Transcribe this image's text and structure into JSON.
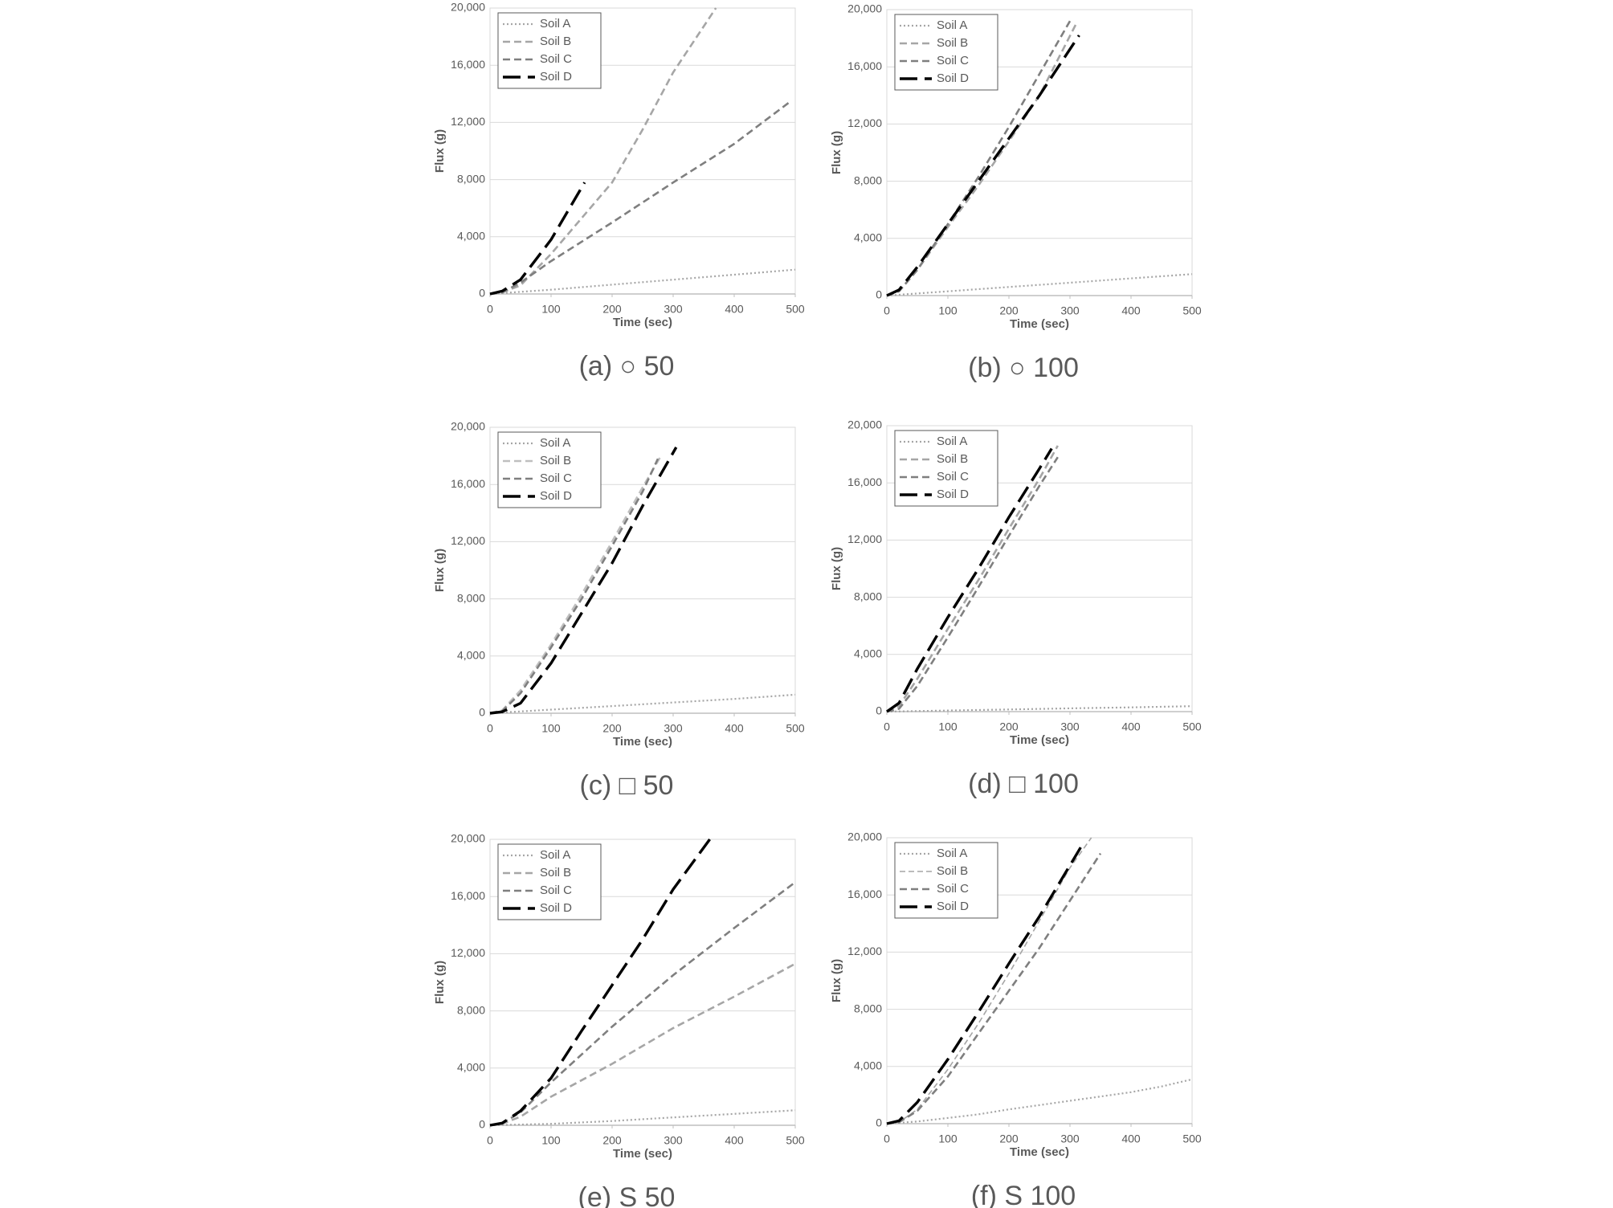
{
  "chart_data": [
    {
      "type": "line",
      "caption": "(a) ○ 50",
      "xlabel": "Time (sec)",
      "ylabel": "Flux (g)",
      "xlim": [
        0,
        500
      ],
      "ylim": [
        0,
        20000
      ],
      "xticks": [
        0,
        100,
        200,
        300,
        400,
        500
      ],
      "yticks": [
        0,
        {
          "value": 4000,
          "label": "4,000"
        },
        {
          "value": 8000,
          "label": "8,000"
        },
        {
          "value": 12000,
          "label": "12,000"
        },
        {
          "value": 16000,
          "label": "16,000"
        },
        {
          "value": 20000,
          "label": "20,000"
        }
      ],
      "grid": true,
      "legend": "upper left",
      "series": [
        {
          "name": "Soil A",
          "color": "#a6a6a6",
          "style": "dotted",
          "x": [
            0,
            100,
            200,
            300,
            400,
            500
          ],
          "values": [
            0,
            300,
            650,
            1000,
            1350,
            1700
          ]
        },
        {
          "name": "Soil B",
          "color": "#a6a6a6",
          "style": "dashed",
          "x": [
            0,
            20,
            50,
            100,
            150,
            200,
            250,
            300,
            370
          ],
          "values": [
            0,
            100,
            600,
            2800,
            5300,
            7800,
            11500,
            15500,
            20000
          ]
        },
        {
          "name": "Soil C",
          "color": "#7f7f7f",
          "style": "dashed",
          "x": [
            0,
            20,
            50,
            100,
            200,
            300,
            400,
            490
          ],
          "values": [
            0,
            100,
            800,
            2300,
            5000,
            7800,
            10500,
            13400
          ]
        },
        {
          "name": "Soil D",
          "color": "#000000",
          "style": "long-dash",
          "x": [
            0,
            20,
            50,
            100,
            155
          ],
          "values": [
            0,
            200,
            1000,
            3800,
            7800
          ]
        }
      ]
    },
    {
      "type": "line",
      "caption": "(b) ○ 100",
      "xlabel": "Time (sec)",
      "ylabel": "Flux (g)",
      "xlim": [
        0,
        500
      ],
      "ylim": [
        0,
        20000
      ],
      "xticks": [
        0,
        100,
        200,
        300,
        400,
        500
      ],
      "yticks": [
        0,
        {
          "value": 4000,
          "label": "4,000"
        },
        {
          "value": 8000,
          "label": "8,000"
        },
        {
          "value": 12000,
          "label": "12,000"
        },
        {
          "value": 16000,
          "label": "16,000"
        },
        {
          "value": 20000,
          "label": "20,000"
        }
      ],
      "grid": true,
      "legend": "upper left",
      "series": [
        {
          "name": "Soil A",
          "color": "#a6a6a6",
          "style": "dotted",
          "x": [
            0,
            100,
            200,
            300,
            400,
            500
          ],
          "values": [
            0,
            300,
            600,
            900,
            1200,
            1500
          ]
        },
        {
          "name": "Soil B",
          "color": "#a6a6a6",
          "style": "dashed",
          "x": [
            0,
            20,
            50,
            100,
            150,
            200,
            250,
            310
          ],
          "values": [
            0,
            300,
            1800,
            4800,
            7700,
            10800,
            14000,
            19000
          ]
        },
        {
          "name": "Soil C",
          "color": "#7f7f7f",
          "style": "dashed",
          "x": [
            0,
            20,
            50,
            100,
            150,
            200,
            250,
            300
          ],
          "values": [
            0,
            300,
            1800,
            5000,
            8300,
            11800,
            15500,
            19200
          ]
        },
        {
          "name": "Soil D",
          "color": "#000000",
          "style": "long-dash",
          "x": [
            0,
            20,
            50,
            100,
            150,
            200,
            250,
            315
          ],
          "values": [
            0,
            400,
            2000,
            5000,
            8000,
            11000,
            14000,
            18200
          ]
        }
      ]
    },
    {
      "type": "line",
      "caption": "(c) □ 50",
      "xlabel": "Time (sec)",
      "ylabel": "Flux (g)",
      "xlim": [
        0,
        500
      ],
      "ylim": [
        0,
        20000
      ],
      "xticks": [
        0,
        100,
        200,
        300,
        400,
        500
      ],
      "yticks": [
        0,
        {
          "value": 4000,
          "label": "4,000"
        },
        {
          "value": 8000,
          "label": "8,000"
        },
        {
          "value": 12000,
          "label": "12,000"
        },
        {
          "value": 16000,
          "label": "16,000"
        },
        {
          "value": 20000,
          "label": "20,000"
        }
      ],
      "grid": true,
      "legend": "upper left",
      "series": [
        {
          "name": "Soil A",
          "color": "#a6a6a6",
          "style": "dotted",
          "x": [
            0,
            100,
            200,
            300,
            400,
            500
          ],
          "values": [
            0,
            250,
            500,
            750,
            1000,
            1300
          ]
        },
        {
          "name": "Soil B",
          "color": "#bfbfbf",
          "style": "dashed",
          "x": [
            0,
            20,
            50,
            100,
            150,
            200,
            250,
            280
          ],
          "values": [
            0,
            200,
            1600,
            4800,
            8300,
            12000,
            15800,
            18000
          ]
        },
        {
          "name": "Soil C",
          "color": "#7f7f7f",
          "style": "dashed",
          "x": [
            0,
            20,
            50,
            100,
            150,
            200,
            250,
            275
          ],
          "values": [
            0,
            150,
            1400,
            4600,
            8000,
            11700,
            15500,
            17800
          ]
        },
        {
          "name": "Soil D",
          "color": "#000000",
          "style": "long-dash",
          "x": [
            0,
            20,
            50,
            100,
            150,
            200,
            250,
            305
          ],
          "values": [
            0,
            100,
            700,
            3500,
            7000,
            10500,
            14500,
            18600
          ]
        }
      ]
    },
    {
      "type": "line",
      "caption": "(d) □ 100",
      "xlabel": "Time (sec)",
      "ylabel": "Flux (g)",
      "xlim": [
        0,
        500
      ],
      "ylim": [
        0,
        20000
      ],
      "xticks": [
        0,
        100,
        200,
        300,
        400,
        500
      ],
      "yticks": [
        0,
        {
          "value": 4000,
          "label": "4,000"
        },
        {
          "value": 8000,
          "label": "8,000"
        },
        {
          "value": 12000,
          "label": "12,000"
        },
        {
          "value": 16000,
          "label": "16,000"
        },
        {
          "value": 20000,
          "label": "20,000"
        }
      ],
      "grid": true,
      "legend": "upper left",
      "series": [
        {
          "name": "Soil A",
          "color": "#a6a6a6",
          "style": "dotted",
          "x": [
            0,
            100,
            200,
            300,
            400,
            500
          ],
          "values": [
            0,
            80,
            150,
            230,
            300,
            380
          ]
        },
        {
          "name": "Soil B",
          "color": "#a6a6a6",
          "style": "dashed",
          "x": [
            0,
            20,
            50,
            100,
            150,
            200,
            250,
            280
          ],
          "values": [
            0,
            400,
            2300,
            5800,
            9200,
            12800,
            16300,
            18600
          ]
        },
        {
          "name": "Soil C",
          "color": "#7f7f7f",
          "style": "dashed",
          "x": [
            0,
            20,
            50,
            100,
            150,
            200,
            250,
            280
          ],
          "values": [
            0,
            200,
            1800,
            5200,
            8700,
            12300,
            15800,
            17800
          ]
        },
        {
          "name": "Soil D",
          "color": "#000000",
          "style": "long-dash",
          "x": [
            0,
            20,
            50,
            100,
            150,
            200,
            250,
            270
          ],
          "values": [
            0,
            600,
            3000,
            6600,
            10000,
            13600,
            17000,
            18400
          ]
        }
      ]
    },
    {
      "type": "line",
      "caption": "(e) S 50",
      "xlabel": "Time (sec)",
      "ylabel": "Flux (g)",
      "xlim": [
        0,
        500
      ],
      "ylim": [
        0,
        20000
      ],
      "xticks": [
        0,
        100,
        200,
        300,
        400,
        500
      ],
      "yticks": [
        0,
        {
          "value": 4000,
          "label": "4,000"
        },
        {
          "value": 8000,
          "label": "8,000"
        },
        {
          "value": 12000,
          "label": "12,000"
        },
        {
          "value": 16000,
          "label": "16,000"
        },
        {
          "value": 20000,
          "label": "20,000"
        }
      ],
      "grid": true,
      "legend": "upper left",
      "series": [
        {
          "name": "Soil A",
          "color": "#a6a6a6",
          "style": "dotted",
          "x": [
            0,
            100,
            200,
            300,
            400,
            500
          ],
          "values": [
            0,
            100,
            300,
            550,
            800,
            1050
          ]
        },
        {
          "name": "Soil B",
          "color": "#a6a6a6",
          "style": "dashed",
          "x": [
            0,
            20,
            50,
            100,
            200,
            300,
            400,
            500
          ],
          "values": [
            0,
            100,
            600,
            2000,
            4300,
            6800,
            9000,
            11300
          ]
        },
        {
          "name": "Soil C",
          "color": "#7f7f7f",
          "style": "dashed",
          "x": [
            0,
            20,
            50,
            100,
            200,
            300,
            400,
            500
          ],
          "values": [
            0,
            150,
            900,
            3000,
            6900,
            10500,
            13800,
            17000
          ]
        },
        {
          "name": "Soil D",
          "color": "#000000",
          "style": "long-dash",
          "x": [
            0,
            20,
            50,
            100,
            150,
            200,
            250,
            300,
            360
          ],
          "values": [
            0,
            150,
            1000,
            3300,
            6600,
            9800,
            13000,
            16500,
            20000
          ]
        }
      ]
    },
    {
      "type": "line",
      "caption": "(f) S 100",
      "xlabel": "Time (sec)",
      "ylabel": "Flux (g)",
      "xlim": [
        0,
        500
      ],
      "ylim": [
        0,
        20000
      ],
      "xticks": [
        0,
        100,
        200,
        300,
        400,
        500
      ],
      "yticks": [
        0,
        {
          "value": 4000,
          "label": "4,000"
        },
        {
          "value": 8000,
          "label": "8,000"
        },
        {
          "value": 12000,
          "label": "12,000"
        },
        {
          "value": 16000,
          "label": "16,000"
        },
        {
          "value": 20000,
          "label": "20,000"
        }
      ],
      "grid": true,
      "legend": "upper left",
      "series": [
        {
          "name": "Soil A",
          "color": "#a6a6a6",
          "style": "dotted",
          "x": [
            0,
            50,
            100,
            150,
            200,
            250,
            300,
            350,
            400,
            450,
            500
          ],
          "values": [
            0,
            150,
            400,
            650,
            1000,
            1300,
            1600,
            1900,
            2200,
            2600,
            3100
          ]
        },
        {
          "name": "Soil B",
          "color": "#a6a6a6",
          "style": "thin-dash",
          "x": [
            0,
            20,
            50,
            100,
            150,
            200,
            250,
            300,
            335
          ],
          "values": [
            0,
            100,
            1000,
            3800,
            7000,
            10500,
            14200,
            17900,
            20000
          ]
        },
        {
          "name": "Soil C",
          "color": "#7f7f7f",
          "style": "dashed",
          "x": [
            0,
            20,
            50,
            100,
            150,
            200,
            250,
            300,
            350
          ],
          "values": [
            0,
            100,
            900,
            3300,
            6300,
            9300,
            12300,
            15600,
            18900
          ]
        },
        {
          "name": "Soil D",
          "color": "#000000",
          "style": "long-dash",
          "x": [
            0,
            20,
            50,
            100,
            150,
            200,
            250,
            320
          ],
          "values": [
            0,
            200,
            1500,
            4500,
            7800,
            11200,
            14500,
            19500
          ]
        }
      ]
    }
  ]
}
